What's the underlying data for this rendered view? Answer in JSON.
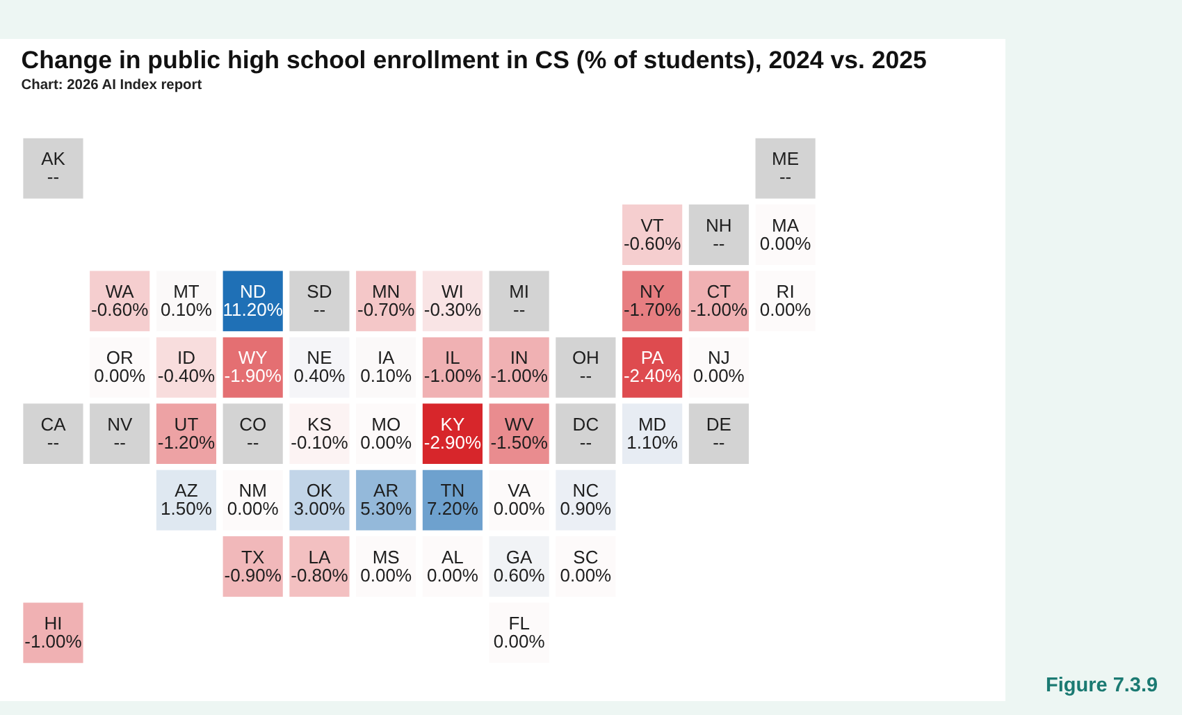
{
  "chart_data": {
    "type": "other",
    "title": "Change in public high school enrollment in CS (% of students), 2024 vs. 2025",
    "subtitle": "Chart: 2026 AI Index report",
    "annotations": [
      "Figure 7.3.9"
    ],
    "categories": [
      "AK",
      "ME",
      "VT",
      "NH",
      "MA",
      "WA",
      "MT",
      "ND",
      "SD",
      "MN",
      "WI",
      "MI",
      "NY",
      "CT",
      "RI",
      "OR",
      "ID",
      "WY",
      "NE",
      "IA",
      "IL",
      "IN",
      "OH",
      "PA",
      "NJ",
      "CA",
      "NV",
      "UT",
      "CO",
      "KS",
      "MO",
      "KY",
      "WV",
      "DC",
      "MD",
      "DE",
      "AZ",
      "NM",
      "OK",
      "AR",
      "TN",
      "VA",
      "NC",
      "TX",
      "LA",
      "MS",
      "AL",
      "GA",
      "SC",
      "HI",
      "FL"
    ],
    "values": [
      null,
      null,
      -0.6,
      null,
      0.0,
      -0.6,
      0.1,
      11.2,
      null,
      -0.7,
      -0.3,
      null,
      -1.7,
      -1.0,
      0.0,
      0.0,
      -0.4,
      -1.9,
      0.4,
      0.1,
      -1.0,
      -1.0,
      null,
      -2.4,
      0.0,
      null,
      null,
      -1.2,
      null,
      -0.1,
      0.0,
      -2.9,
      -1.5,
      null,
      1.1,
      null,
      1.5,
      0.0,
      3.0,
      5.3,
      7.2,
      0.0,
      0.9,
      -0.9,
      -0.8,
      0.0,
      0.0,
      0.6,
      0.0,
      -1.0,
      0.0
    ],
    "value_labels": [
      "--",
      "--",
      "-0.60%",
      "--",
      "0.00%",
      "-0.60%",
      "0.10%",
      "11.20%",
      "--",
      "-0.70%",
      "-0.30%",
      "--",
      "-1.70%",
      "-1.00%",
      "0.00%",
      "0.00%",
      "-0.40%",
      "-1.90%",
      "0.40%",
      "0.10%",
      "-1.00%",
      "-1.00%",
      "--",
      "-2.40%",
      "0.00%",
      "--",
      "--",
      "-1.20%",
      "--",
      "-0.10%",
      "0.00%",
      "-2.90%",
      "-1.50%",
      "--",
      "1.10%",
      "--",
      "1.50%",
      "0.00%",
      "3.00%",
      "5.30%",
      "7.20%",
      "0.00%",
      "0.90%",
      "-0.90%",
      "-0.80%",
      "0.00%",
      "0.00%",
      "0.60%",
      "0.00%",
      "-1.00%",
      "0.00%"
    ]
  }
}
